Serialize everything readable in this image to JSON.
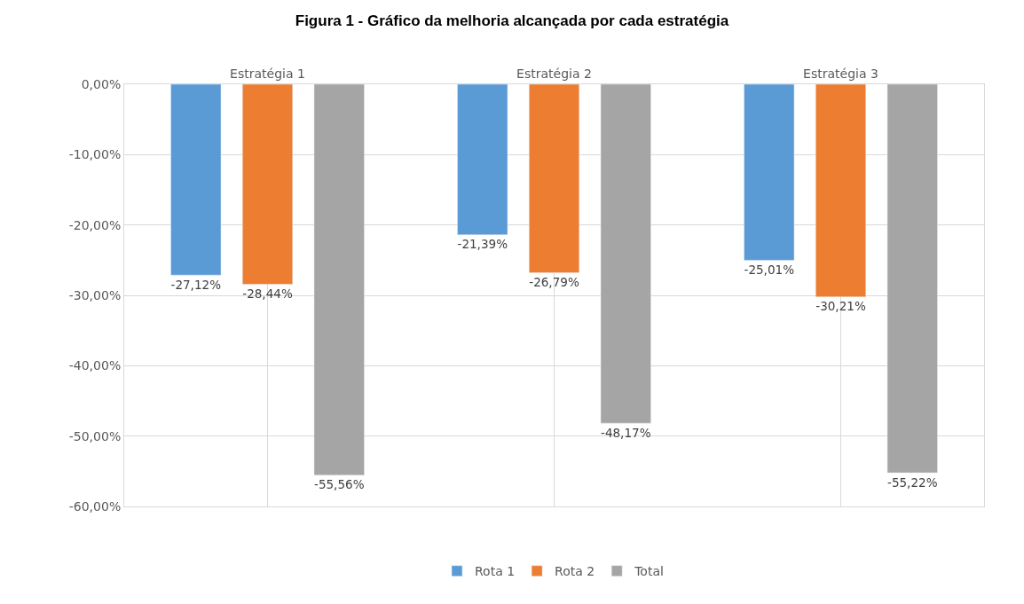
{
  "chart_data": {
    "type": "bar",
    "title": "Figura 1 - Gráfico da melhoria alcançada por cada estratégia",
    "categories": [
      "Estratégia 1",
      "Estratégia 2",
      "Estratégia 3"
    ],
    "series": [
      {
        "name": "Rota 1",
        "color": "#5b9bd5",
        "values": [
          -27.12,
          -21.39,
          -25.01
        ],
        "value_labels": [
          "-27,12%",
          "-21,39%",
          "-25,01%"
        ]
      },
      {
        "name": "Rota 2",
        "color": "#ed7d31",
        "values": [
          -28.44,
          -26.79,
          -30.21
        ],
        "value_labels": [
          "-28,44%",
          "-26,79%",
          "-30,21%"
        ]
      },
      {
        "name": "Total",
        "color": "#a5a5a5",
        "values": [
          -55.56,
          -48.17,
          -55.22
        ],
        "value_labels": [
          "-55,56%",
          "-48,17%",
          "-55,22%"
        ]
      }
    ],
    "ylim": [
      -60,
      0
    ],
    "yticks": [
      {
        "value": 0,
        "label": "0,00%"
      },
      {
        "value": -10,
        "label": "-10,00%"
      },
      {
        "value": -20,
        "label": "-20,00%"
      },
      {
        "value": -30,
        "label": "-30,00%"
      },
      {
        "value": -40,
        "label": "-40,00%"
      },
      {
        "value": -50,
        "label": "-50,00%"
      },
      {
        "value": -60,
        "label": "-60,00%"
      }
    ],
    "grid": true,
    "legend": "bottom"
  }
}
